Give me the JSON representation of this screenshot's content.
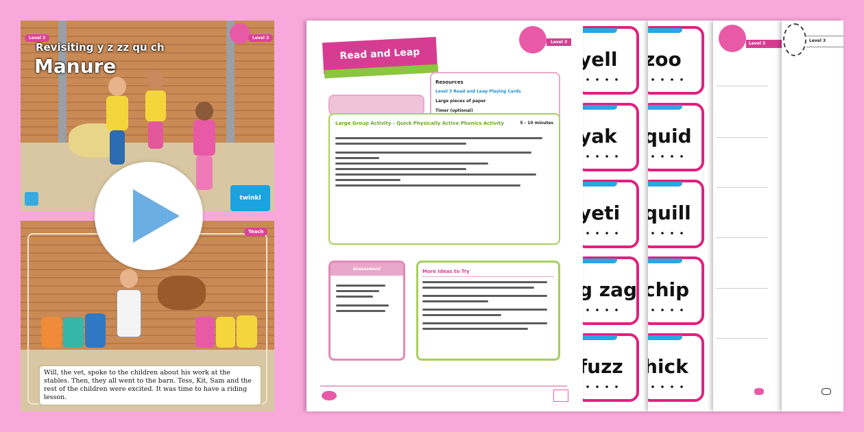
{
  "slide1": {
    "scheme_tag": "Level 3",
    "level_tag": "Level 3",
    "subtitle": "Revisiting y z zz qu ch",
    "title": "Manure",
    "logo_text": "twinkl"
  },
  "slide2": {
    "tag": "Teach",
    "caption": "Will, the vet, spoke to the children about his work at the stables. Then, they all went to the barn. Tess, Kit, Sam and the rest of the children were excited. It was time to have a riding lesson."
  },
  "play_button": {
    "icon": "play-icon",
    "color": "#6aaee3"
  },
  "document": {
    "banner_title": "Read and Leap",
    "level": "Level 3",
    "resources_heading": "Resources",
    "resources": [
      "Level 3 Read and Leap Playing Cards",
      "Large pieces of paper",
      "Timer (optional)"
    ],
    "activity_title": "Large Group Activity - Quick Physically Active Phonics Activity",
    "duration": "5 - 10 minutes",
    "assessment_heading": "Assessment",
    "more_ideas_heading": "More Ideas to Try"
  },
  "cards": {
    "column1": [
      "yell",
      "yak",
      "yeti",
      "g zag",
      "fuzz"
    ],
    "column2": [
      "zoo",
      "quid",
      "quill",
      "chip",
      "hick"
    ]
  },
  "sheet3": {
    "level": "Level 3"
  },
  "sheet4": {
    "level": "Level 3"
  },
  "colors": {
    "background": "#f9a8dc",
    "brand_pink": "#e0409c",
    "card_border": "#e0207e",
    "lime": "#8cc63f",
    "blue": "#2aa6e0"
  }
}
